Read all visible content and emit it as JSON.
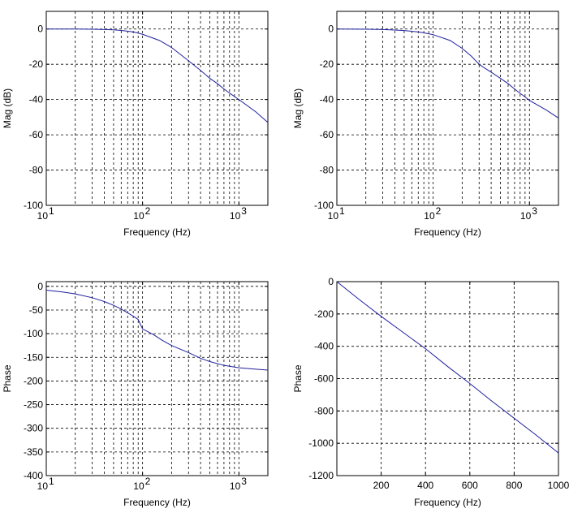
{
  "colors": {
    "line": "#1f1f9e",
    "axes": "#000000",
    "background": "#ffffff"
  },
  "chart_data": [
    {
      "type": "line",
      "panel": "top-left",
      "xscale": "log",
      "xlim": [
        10,
        2000
      ],
      "ylim": [
        -100,
        10
      ],
      "xlabel": "Frequency (Hz)",
      "ylabel": "Mag (dB)",
      "grid": true,
      "yticks": [
        0,
        -20,
        -40,
        -60,
        -80,
        -100
      ],
      "ytick_labels": [
        "0",
        "-20",
        "-40",
        "-60",
        "-80",
        "-100"
      ],
      "xticks": [
        10,
        100,
        1000
      ],
      "xtick_labels": [
        {
          "base": "10",
          "exp": "1"
        },
        {
          "base": "10",
          "exp": "2"
        },
        {
          "base": "10",
          "exp": "3"
        }
      ],
      "series": [
        {
          "x": [
            10,
            20,
            30,
            40,
            50,
            60,
            70,
            80,
            90,
            100,
            150,
            200,
            300,
            400,
            500,
            600,
            700,
            800,
            900,
            1000,
            1500,
            2000
          ],
          "y": [
            0,
            0,
            -0.1,
            -0.3,
            -0.5,
            -0.8,
            -1.2,
            -1.7,
            -2.3,
            -3,
            -6.5,
            -10.5,
            -18,
            -23.5,
            -28,
            -31,
            -34,
            -36.3,
            -38.3,
            -40,
            -47,
            -53
          ]
        }
      ]
    },
    {
      "type": "line",
      "panel": "top-right",
      "xscale": "log",
      "xlim": [
        10,
        2000
      ],
      "ylim": [
        -100,
        10
      ],
      "xlabel": "Frequency (Hz)",
      "ylabel": "Mag (dB)",
      "grid": true,
      "yticks": [
        0,
        -20,
        -40,
        -60,
        -80,
        -100
      ],
      "ytick_labels": [
        "0",
        "-20",
        "-40",
        "-60",
        "-80",
        "-100"
      ],
      "xticks": [
        10,
        100,
        1000
      ],
      "xtick_labels": [
        {
          "base": "10",
          "exp": "1"
        },
        {
          "base": "10",
          "exp": "2"
        },
        {
          "base": "10",
          "exp": "3"
        }
      ],
      "series": [
        {
          "x": [
            10,
            20,
            30,
            40,
            50,
            60,
            70,
            80,
            90,
            100,
            150,
            200,
            250,
            300,
            350,
            400,
            500,
            600,
            700,
            800,
            900,
            1000,
            1500,
            2000
          ],
          "y": [
            0,
            -0.1,
            -0.3,
            -0.6,
            -0.9,
            -1.3,
            -1.7,
            -2.2,
            -2.7,
            -3.2,
            -6.5,
            -11,
            -15.5,
            -20,
            -22.5,
            -24.5,
            -28,
            -31,
            -34,
            -36.5,
            -38.5,
            -40.5,
            -46,
            -50.5
          ]
        }
      ]
    },
    {
      "type": "line",
      "panel": "bottom-left",
      "xscale": "log",
      "xlim": [
        10,
        2000
      ],
      "ylim": [
        -400,
        10
      ],
      "xlabel": "Frequency (Hz)",
      "ylabel": "Phase",
      "grid": true,
      "yticks": [
        0,
        -50,
        -100,
        -150,
        -200,
        -250,
        -300,
        -350,
        -400
      ],
      "ytick_labels": [
        "0",
        "-50",
        "-100",
        "-150",
        "-200",
        "-250",
        "-300",
        "-350",
        "-400"
      ],
      "xticks": [
        10,
        100,
        1000
      ],
      "xtick_labels": [
        {
          "base": "10",
          "exp": "1"
        },
        {
          "base": "10",
          "exp": "2"
        },
        {
          "base": "10",
          "exp": "3"
        }
      ],
      "series": [
        {
          "x": [
            10,
            15,
            20,
            30,
            40,
            50,
            60,
            70,
            80,
            90,
            100,
            130,
            160,
            200,
            300,
            400,
            500,
            700,
            1000,
            1500,
            2000
          ],
          "y": [
            -8,
            -12,
            -16,
            -24,
            -32,
            -40,
            -48,
            -56,
            -63,
            -70,
            -90,
            -102,
            -114,
            -125,
            -140,
            -152,
            -159,
            -167,
            -172,
            -175,
            -177
          ]
        }
      ]
    },
    {
      "type": "line",
      "panel": "bottom-right",
      "xscale": "linear",
      "xlim": [
        0,
        1000
      ],
      "ylim": [
        -1200,
        0
      ],
      "xlabel": "Frequency (Hz)",
      "ylabel": "Phase",
      "grid": true,
      "yticks": [
        0,
        -200,
        -400,
        -600,
        -800,
        -1000,
        -1200
      ],
      "ytick_labels": [
        "0",
        "-200",
        "-400",
        "-600",
        "-800",
        "-1000",
        "-1200"
      ],
      "xticks": [
        200,
        400,
        600,
        800,
        1000
      ],
      "xtick_labels": [
        "200",
        "400",
        "600",
        "800",
        "1000"
      ],
      "series": [
        {
          "x": [
            0,
            100,
            200,
            300,
            400,
            500,
            600,
            700,
            800,
            900,
            1000
          ],
          "y": [
            0,
            -110,
            -215,
            -315,
            -415,
            -525,
            -630,
            -740,
            -845,
            -950,
            -1060
          ]
        }
      ]
    }
  ]
}
